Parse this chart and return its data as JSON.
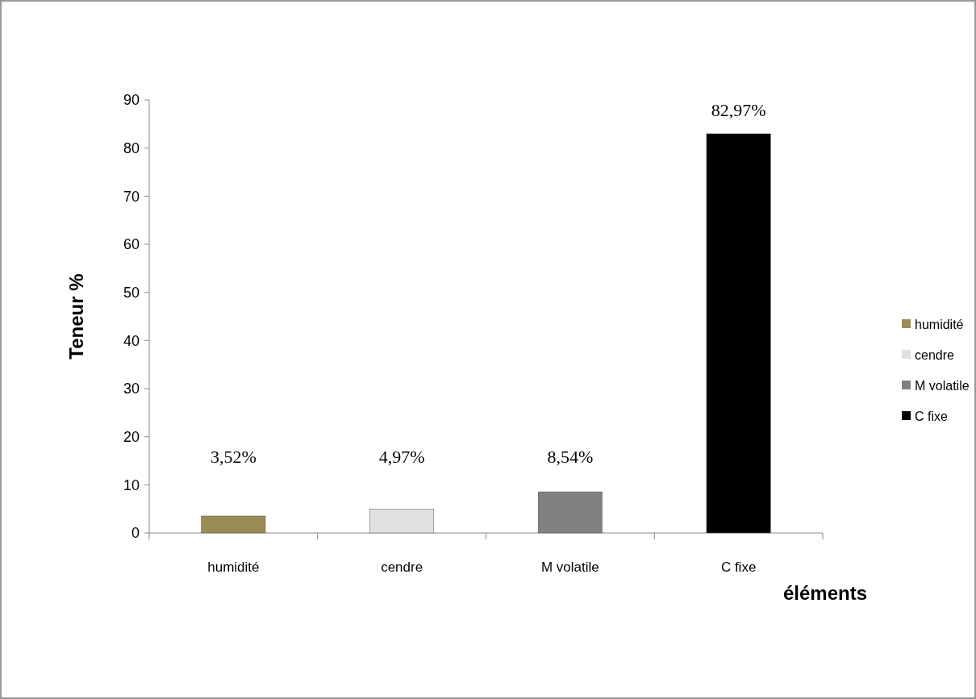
{
  "chart_data": {
    "type": "bar",
    "xlabel": "éléments",
    "ylabel": "Teneur %",
    "categories": [
      "humidité",
      "cendre",
      "M volatile",
      "C fixe"
    ],
    "series": [
      {
        "name": "humidité",
        "color": "#9a8c56",
        "values": [
          3.52,
          null,
          null,
          null
        ],
        "value_labels": [
          "3,52%",
          null,
          null,
          null
        ]
      },
      {
        "name": "cendre",
        "color": "#e0e0e0",
        "values": [
          null,
          4.97,
          null,
          null
        ],
        "value_labels": [
          null,
          "4,97%",
          null,
          null
        ]
      },
      {
        "name": "M volatile",
        "color": "#808080",
        "values": [
          null,
          null,
          8.54,
          null
        ],
        "value_labels": [
          null,
          null,
          "8,54%",
          null
        ]
      },
      {
        "name": "C fixe",
        "color": "#000000",
        "values": [
          null,
          null,
          null,
          82.97
        ],
        "value_labels": [
          null,
          null,
          null,
          "82,97%"
        ]
      }
    ],
    "ylim": [
      0,
      90
    ],
    "yticks": [
      0,
      10,
      20,
      30,
      40,
      50,
      60,
      70,
      80,
      90
    ],
    "grid": false,
    "legend": "right"
  }
}
